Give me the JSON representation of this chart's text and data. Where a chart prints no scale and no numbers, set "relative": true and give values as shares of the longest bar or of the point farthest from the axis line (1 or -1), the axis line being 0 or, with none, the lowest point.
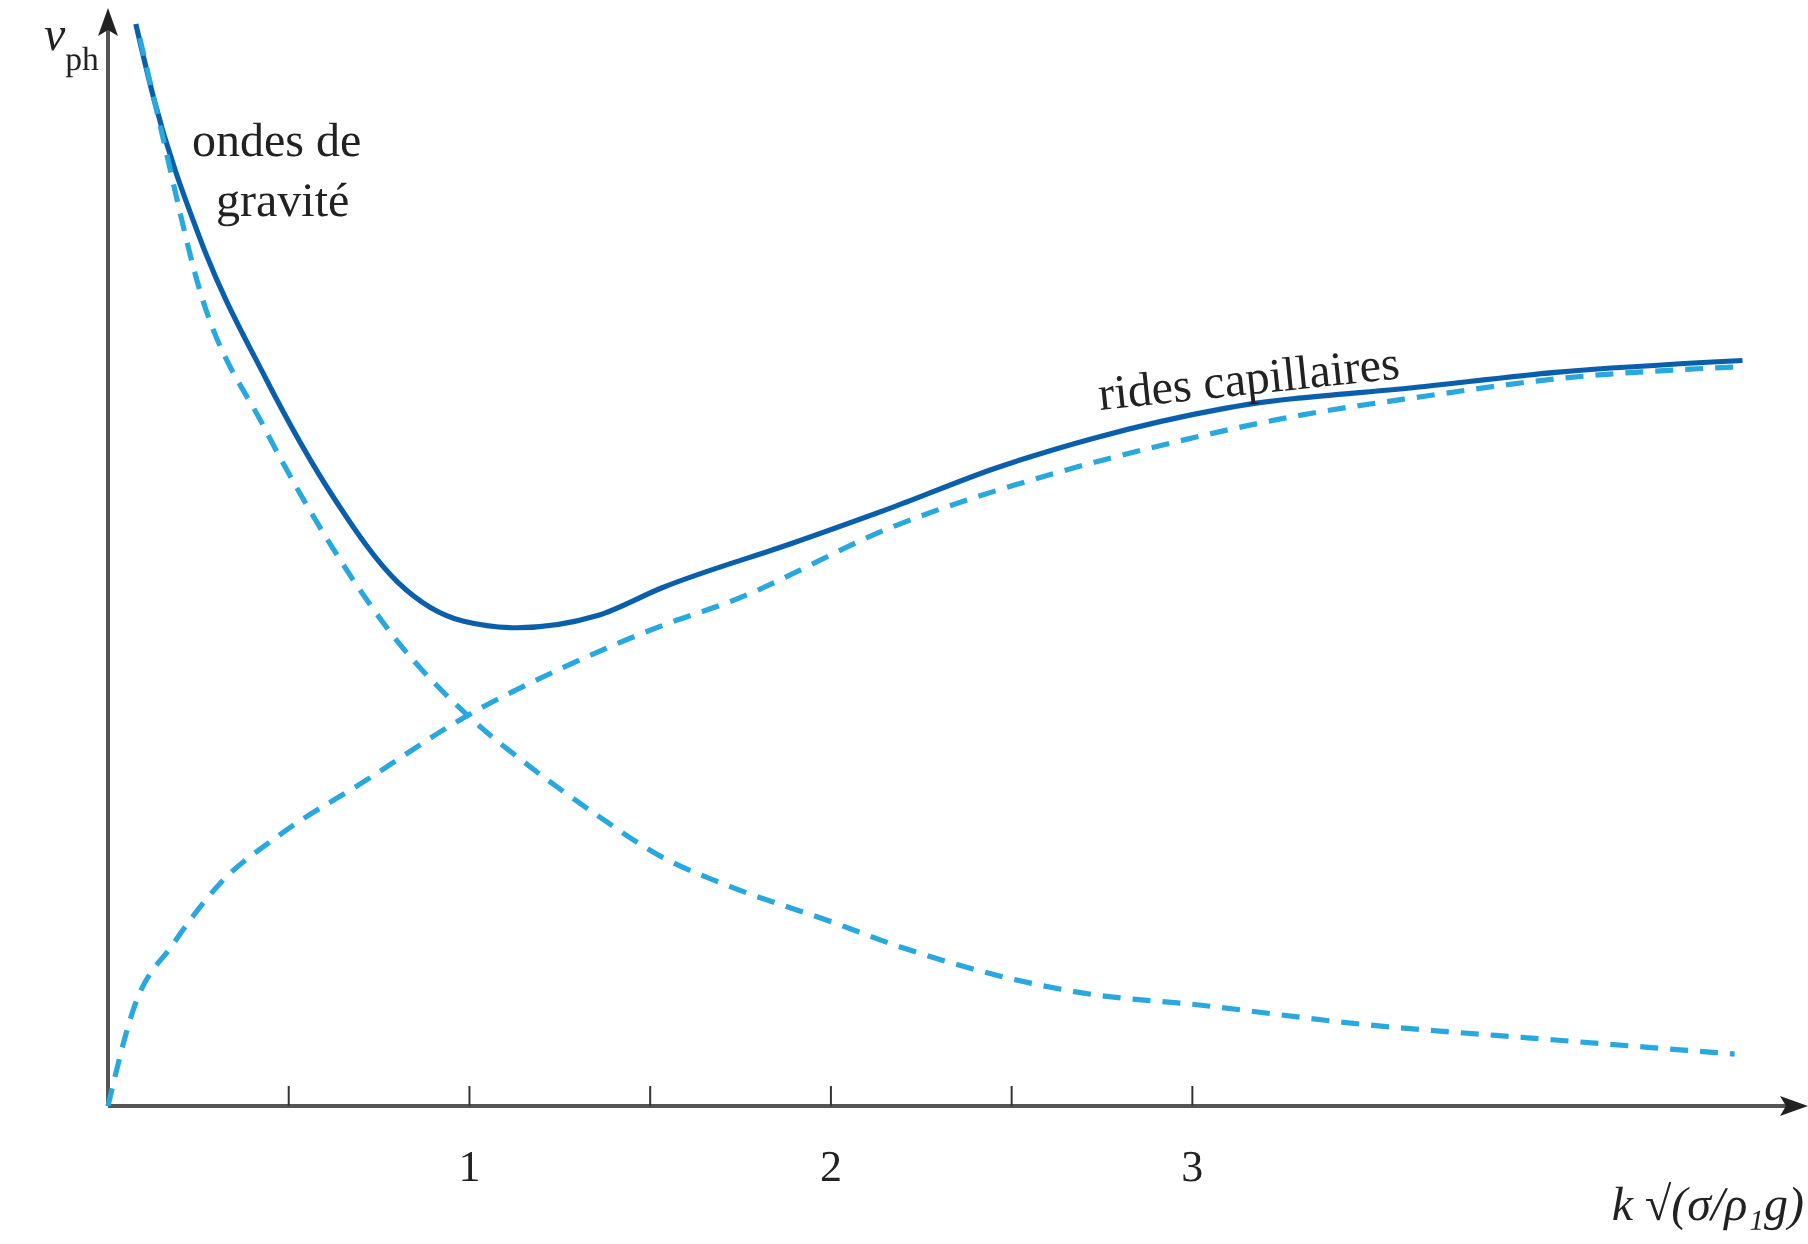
{
  "chart_data": {
    "type": "line",
    "relative": true,
    "xlabel": "k √(σ/ρ₁g)",
    "ylabel": "v$_{ph}$",
    "xlim": [
      0,
      4.67
    ],
    "xticks": [
      {
        "value": 0.5,
        "label": null
      },
      1,
      {
        "value": 1.5,
        "label": null
      },
      2,
      {
        "value": 2.5,
        "label": null
      },
      3
    ],
    "marker": "none",
    "series": [
      {
        "color": "#0a5fad",
        "line_style": "solid",
        "x": [
          0.077,
          0.126,
          0.253,
          0.434,
          0.621,
          0.802,
          0.984,
          1.132,
          1.352,
          1.533,
          1.901,
          2.176,
          2.451,
          2.725,
          3.093,
          3.643,
          4.005,
          4.522
        ],
        "values": [
          1.0,
          0.932,
          0.803,
          0.674,
          0.564,
          0.484,
          0.448,
          0.442,
          0.453,
          0.479,
          0.521,
          0.554,
          0.589,
          0.617,
          0.645,
          0.665,
          0.678,
          0.689
        ]
      },
      {
        "name": "ondes de gravité",
        "color": "#29a8e0",
        "line_style": "dashed",
        "x": [
          0.088,
          0.143,
          0.253,
          0.434,
          0.621,
          0.802,
          0.995,
          1.17,
          1.352,
          1.533,
          1.72,
          1.995,
          2.192,
          2.725,
          3.0,
          3.456,
          4.005,
          4.5
        ],
        "values": [
          0.987,
          0.908,
          0.755,
          0.626,
          0.516,
          0.429,
          0.361,
          0.313,
          0.269,
          0.23,
          0.203,
          0.171,
          0.147,
          0.103,
          0.094,
          0.076,
          0.061,
          0.048
        ]
      },
      {
        "name": "rides capillaires",
        "color": "#29a8e0",
        "line_style": "dashed",
        "x": [
          0,
          0.071,
          0.181,
          0.308,
          0.473,
          0.709,
          0.995,
          1.258,
          1.533,
          1.72,
          2.176,
          2.632,
          2.907,
          3.275,
          3.643,
          4.005,
          4.5
        ],
        "values": [
          0,
          0.09,
          0.15,
          0.205,
          0.25,
          0.3,
          0.361,
          0.405,
          0.444,
          0.466,
          0.536,
          0.586,
          0.61,
          0.637,
          0.656,
          0.672,
          0.683
        ]
      }
    ]
  }
}
